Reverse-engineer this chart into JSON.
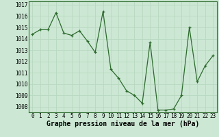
{
  "x": [
    0,
    1,
    2,
    3,
    4,
    5,
    6,
    7,
    8,
    9,
    10,
    11,
    12,
    13,
    14,
    15,
    16,
    17,
    18,
    19,
    20,
    21,
    22,
    23
  ],
  "y": [
    1014.4,
    1014.8,
    1014.8,
    1016.3,
    1014.5,
    1014.3,
    1014.7,
    1013.8,
    1012.8,
    1016.4,
    1011.3,
    1010.5,
    1009.4,
    1009.0,
    1008.3,
    1013.7,
    1007.7,
    1007.7,
    1007.8,
    1009.0,
    1015.0,
    1010.2,
    1011.6,
    1012.5
  ],
  "line_color": "#2d6a2d",
  "marker": "+",
  "bg_color": "#cce8d4",
  "grid_color": "#b8d8c0",
  "xlabel": "Graphe pression niveau de la mer (hPa)",
  "xlabel_fontsize": 7.0,
  "xlabel_fontweight": "bold",
  "ylim": [
    1007.5,
    1017.3
  ],
  "yticks": [
    1008,
    1009,
    1010,
    1011,
    1012,
    1013,
    1014,
    1015,
    1016,
    1017
  ],
  "xticks": [
    0,
    1,
    2,
    3,
    4,
    5,
    6,
    7,
    8,
    9,
    10,
    11,
    12,
    13,
    14,
    15,
    16,
    17,
    18,
    19,
    20,
    21,
    22,
    23
  ],
  "tick_fontsize": 5.5,
  "spine_color": "#2d6a2d",
  "xlim": [
    -0.5,
    23.5
  ]
}
